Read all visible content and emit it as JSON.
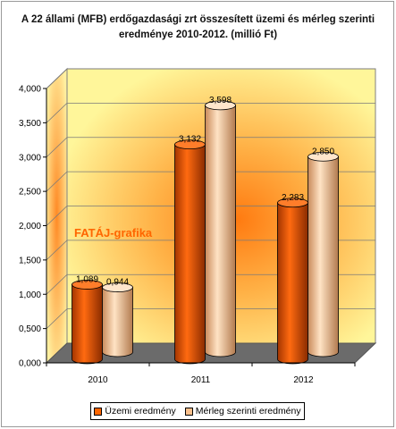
{
  "chart_data": {
    "type": "bar",
    "title": "A 22 állami (MFB) erdőgazdasági zrt összesített üzemi és mérleg szerinti eredménye 2010-2012. (millió Ft)",
    "categories": [
      "2010",
      "2011",
      "2012"
    ],
    "series": [
      {
        "name": "Üzemi eredmény",
        "values": [
          1.089,
          3.132,
          2.283
        ],
        "labels": [
          "1,089",
          "3,132",
          "2,283"
        ],
        "color": "#ff6600"
      },
      {
        "name": "Mérleg szerinti eredmény",
        "values": [
          0.944,
          3.598,
          2.85
        ],
        "labels": [
          "0,944",
          "3,598",
          "2,850"
        ],
        "color": "#fbc08c"
      }
    ],
    "yticks": [
      "0,000",
      "0,500",
      "1,000",
      "1,500",
      "2,000",
      "2,500",
      "3,000",
      "3,500",
      "4,000"
    ],
    "ylim": [
      0,
      4
    ],
    "xlabel": "",
    "ylabel": "",
    "grid": true,
    "legend_position": "bottom",
    "annotation": "FATÁJ-grafika"
  }
}
